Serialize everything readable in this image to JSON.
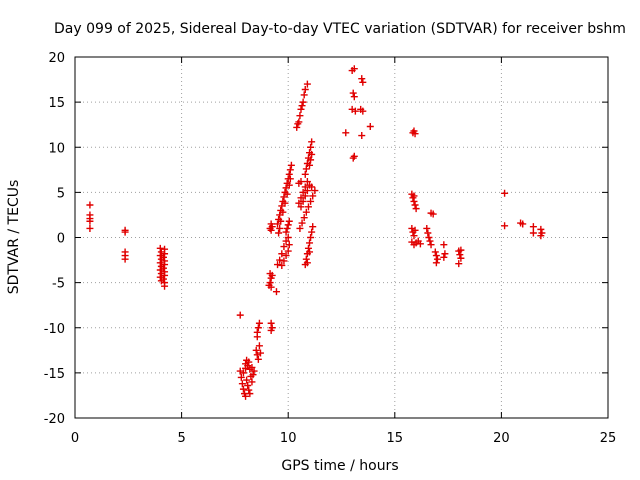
{
  "chart_data": {
    "type": "scatter",
    "title": "Day 099 of 2025, Sidereal Day-to-day VTEC variation (SDTVAR) for receiver bshm",
    "xlabel": "GPS time / hours",
    "ylabel": "SDTVAR / TECUs",
    "xlim": [
      0,
      25
    ],
    "ylim": [
      -20,
      20
    ],
    "xticks": [
      0,
      5,
      10,
      15,
      20,
      25
    ],
    "yticks": [
      -20,
      -15,
      -10,
      -5,
      0,
      5,
      10,
      15,
      20
    ],
    "grid": true,
    "marker": "plus",
    "color": "#e00000",
    "series": [
      {
        "name": "SDTVAR",
        "points": [
          [
            0.7,
            3.6
          ],
          [
            0.7,
            2.5
          ],
          [
            0.7,
            2.1
          ],
          [
            0.7,
            1.8
          ],
          [
            0.7,
            1.0
          ],
          [
            2.35,
            0.8
          ],
          [
            2.35,
            0.6
          ],
          [
            2.35,
            -1.6
          ],
          [
            2.35,
            -2.0
          ],
          [
            2.35,
            -2.4
          ],
          [
            4.0,
            -1.2
          ],
          [
            4.05,
            -1.6
          ],
          [
            4.0,
            -2.0
          ],
          [
            4.05,
            -2.4
          ],
          [
            4.0,
            -2.8
          ],
          [
            4.05,
            -3.2
          ],
          [
            4.0,
            -3.6
          ],
          [
            4.05,
            -4.0
          ],
          [
            4.0,
            -4.4
          ],
          [
            4.05,
            -4.8
          ],
          [
            4.2,
            -1.3
          ],
          [
            4.2,
            -1.8
          ],
          [
            4.15,
            -2.2
          ],
          [
            4.2,
            -2.6
          ],
          [
            4.2,
            -3.0
          ],
          [
            4.15,
            -3.4
          ],
          [
            4.2,
            -3.8
          ],
          [
            4.2,
            -4.2
          ],
          [
            4.15,
            -4.6
          ],
          [
            4.2,
            -5.0
          ],
          [
            4.2,
            -5.4
          ],
          [
            7.75,
            -8.6
          ],
          [
            7.75,
            -14.8
          ],
          [
            7.8,
            -15.5
          ],
          [
            7.85,
            -16.2
          ],
          [
            7.9,
            -16.8
          ],
          [
            7.95,
            -17.3
          ],
          [
            8.0,
            -17.6
          ],
          [
            7.9,
            -15.0
          ],
          [
            8.0,
            -14.5
          ],
          [
            8.05,
            -15.8
          ],
          [
            8.1,
            -16.4
          ],
          [
            8.15,
            -16.9
          ],
          [
            8.2,
            -17.3
          ],
          [
            8.1,
            -14.2
          ],
          [
            8.15,
            -13.8
          ],
          [
            8.2,
            -14.6
          ],
          [
            8.25,
            -15.4
          ],
          [
            8.3,
            -16.0
          ],
          [
            8.3,
            -14.4
          ],
          [
            8.35,
            -15.2
          ],
          [
            8.4,
            -14.8
          ],
          [
            8.0,
            -14.0
          ],
          [
            8.05,
            -13.6
          ],
          [
            8.5,
            -12.5
          ],
          [
            8.55,
            -13.0
          ],
          [
            8.6,
            -13.5
          ],
          [
            8.65,
            -12.0
          ],
          [
            8.55,
            -10.5
          ],
          [
            8.6,
            -10.0
          ],
          [
            8.65,
            -9.5
          ],
          [
            8.55,
            -11.0
          ],
          [
            8.7,
            -12.8
          ],
          [
            9.2,
            -9.5
          ],
          [
            9.25,
            -10.0
          ],
          [
            9.2,
            -10.3
          ],
          [
            9.15,
            -4.0
          ],
          [
            9.2,
            -4.5
          ],
          [
            9.15,
            -5.0
          ],
          [
            9.2,
            -5.5
          ],
          [
            9.25,
            -4.2
          ],
          [
            9.1,
            -5.3
          ],
          [
            9.45,
            -6.0
          ],
          [
            9.15,
            1.0
          ],
          [
            9.2,
            1.5
          ],
          [
            9.25,
            1.2
          ],
          [
            9.2,
            0.8
          ],
          [
            9.5,
            -3.0
          ],
          [
            9.6,
            -2.5
          ],
          [
            9.7,
            -1.8
          ],
          [
            9.8,
            -1.0
          ],
          [
            9.9,
            -0.4
          ],
          [
            10.0,
            0.0
          ],
          [
            10.05,
            -0.8
          ],
          [
            10.0,
            -1.5
          ],
          [
            9.9,
            -2.0
          ],
          [
            9.8,
            -2.6
          ],
          [
            9.7,
            -3.1
          ],
          [
            9.5,
            1.5
          ],
          [
            9.55,
            2.0
          ],
          [
            9.6,
            2.5
          ],
          [
            9.65,
            3.0
          ],
          [
            9.7,
            3.5
          ],
          [
            9.75,
            4.0
          ],
          [
            9.8,
            4.5
          ],
          [
            9.85,
            5.0
          ],
          [
            9.9,
            5.5
          ],
          [
            9.95,
            6.0
          ],
          [
            10.0,
            6.5
          ],
          [
            10.05,
            7.0
          ],
          [
            10.1,
            7.5
          ],
          [
            10.15,
            8.0
          ],
          [
            9.6,
            1.0
          ],
          [
            9.65,
            1.8
          ],
          [
            9.75,
            2.8
          ],
          [
            9.85,
            3.8
          ],
          [
            9.95,
            4.8
          ],
          [
            10.05,
            5.8
          ],
          [
            10.1,
            6.5
          ],
          [
            9.55,
            0.5
          ],
          [
            9.9,
            0.6
          ],
          [
            9.95,
            1.0
          ],
          [
            10.0,
            1.4
          ],
          [
            10.05,
            1.8
          ],
          [
            10.5,
            3.8
          ],
          [
            10.6,
            4.4
          ],
          [
            10.7,
            5.0
          ],
          [
            10.8,
            5.6
          ],
          [
            10.9,
            6.2
          ],
          [
            10.6,
            3.4
          ],
          [
            10.7,
            4.0
          ],
          [
            10.8,
            4.6
          ],
          [
            10.9,
            5.2
          ],
          [
            11.0,
            5.8
          ],
          [
            10.55,
            1.0
          ],
          [
            10.65,
            1.6
          ],
          [
            10.75,
            2.2
          ],
          [
            10.85,
            2.8
          ],
          [
            10.95,
            3.4
          ],
          [
            11.05,
            4.0
          ],
          [
            11.15,
            4.6
          ],
          [
            11.25,
            5.2
          ],
          [
            11.1,
            5.6
          ],
          [
            10.6,
            6.2
          ],
          [
            10.5,
            6.0
          ],
          [
            10.4,
            12.2
          ],
          [
            10.5,
            12.8
          ],
          [
            10.55,
            13.5
          ],
          [
            10.6,
            14.2
          ],
          [
            10.7,
            15.0
          ],
          [
            10.75,
            15.8
          ],
          [
            10.8,
            16.4
          ],
          [
            10.9,
            17.0
          ],
          [
            10.45,
            12.6
          ],
          [
            10.65,
            14.6
          ],
          [
            10.8,
            7.0
          ],
          [
            10.85,
            7.6
          ],
          [
            10.9,
            8.2
          ],
          [
            10.95,
            8.8
          ],
          [
            11.0,
            9.4
          ],
          [
            11.05,
            10.0
          ],
          [
            11.1,
            10.6
          ],
          [
            11.0,
            8.0
          ],
          [
            11.05,
            8.6
          ],
          [
            11.1,
            9.2
          ],
          [
            10.8,
            -3.0
          ],
          [
            10.85,
            -2.4
          ],
          [
            10.9,
            -1.8
          ],
          [
            10.95,
            -1.2
          ],
          [
            11.0,
            -0.6
          ],
          [
            11.05,
            0.0
          ],
          [
            11.1,
            0.6
          ],
          [
            11.15,
            1.2
          ],
          [
            10.9,
            -2.8
          ],
          [
            11.0,
            -1.6
          ],
          [
            12.7,
            11.6
          ],
          [
            13.0,
            18.5
          ],
          [
            13.1,
            18.7
          ],
          [
            13.05,
            16.0
          ],
          [
            13.1,
            15.6
          ],
          [
            13.0,
            14.2
          ],
          [
            13.15,
            14.0
          ],
          [
            13.05,
            8.8
          ],
          [
            13.1,
            9.0
          ],
          [
            13.45,
            17.6
          ],
          [
            13.5,
            17.2
          ],
          [
            13.4,
            14.2
          ],
          [
            13.5,
            14.0
          ],
          [
            13.45,
            11.3
          ],
          [
            13.85,
            12.3
          ],
          [
            15.85,
            11.6
          ],
          [
            15.9,
            11.8
          ],
          [
            15.95,
            11.5
          ],
          [
            15.8,
            4.8
          ],
          [
            15.85,
            4.4
          ],
          [
            15.9,
            4.0
          ],
          [
            15.95,
            3.6
          ],
          [
            16.0,
            3.2
          ],
          [
            15.9,
            4.6
          ],
          [
            15.8,
            1.0
          ],
          [
            15.85,
            0.6
          ],
          [
            15.9,
            0.2
          ],
          [
            15.95,
            0.8
          ],
          [
            15.8,
            -0.5
          ],
          [
            15.9,
            -0.8
          ],
          [
            16.0,
            -0.6
          ],
          [
            16.1,
            -0.4
          ],
          [
            16.2,
            -0.7
          ],
          [
            16.5,
            1.0
          ],
          [
            16.55,
            0.5
          ],
          [
            16.6,
            0.0
          ],
          [
            16.65,
            -0.4
          ],
          [
            16.7,
            -0.8
          ],
          [
            16.7,
            2.7
          ],
          [
            16.8,
            2.6
          ],
          [
            16.9,
            -1.6
          ],
          [
            16.95,
            -2.0
          ],
          [
            17.0,
            -2.4
          ],
          [
            16.95,
            -2.8
          ],
          [
            17.3,
            -0.8
          ],
          [
            17.35,
            -1.8
          ],
          [
            17.3,
            -2.2
          ],
          [
            18.0,
            -1.5
          ],
          [
            18.05,
            -1.9
          ],
          [
            18.1,
            -2.3
          ],
          [
            18.0,
            -2.9
          ],
          [
            18.1,
            -1.4
          ],
          [
            20.15,
            4.9
          ],
          [
            20.15,
            1.3
          ],
          [
            20.9,
            1.6
          ],
          [
            21.0,
            1.5
          ],
          [
            21.5,
            1.2
          ],
          [
            21.5,
            0.5
          ],
          [
            21.85,
            0.9
          ],
          [
            21.9,
            0.5
          ],
          [
            21.85,
            0.2
          ]
        ]
      }
    ]
  }
}
